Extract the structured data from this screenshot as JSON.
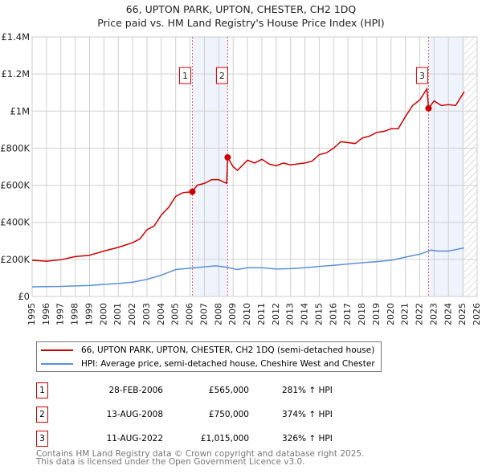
{
  "chart_data": {
    "type": "line",
    "title": "66, UPTON PARK, UPTON, CHESTER, CH2 1DQ",
    "subtitle": "Price paid vs. HM Land Registry's House Price Index (HPI)",
    "xlim": [
      1995,
      2026
    ],
    "ylim": [
      0,
      1400000
    ],
    "yticks": [
      {
        "v": 0,
        "label": "£0"
      },
      {
        "v": 200000,
        "label": "£200K"
      },
      {
        "v": 400000,
        "label": "£400K"
      },
      {
        "v": 600000,
        "label": "£600K"
      },
      {
        "v": 800000,
        "label": "£800K"
      },
      {
        "v": 1000000,
        "label": "£1M"
      },
      {
        "v": 1200000,
        "label": "£1.2M"
      },
      {
        "v": 1400000,
        "label": "£1.4M"
      }
    ],
    "xticks": [
      "1995",
      "1996",
      "1997",
      "1998",
      "1999",
      "2000",
      "2001",
      "2002",
      "2003",
      "2004",
      "2005",
      "2006",
      "2007",
      "2008",
      "2009",
      "2010",
      "2011",
      "2012",
      "2013",
      "2014",
      "2015",
      "2016",
      "2017",
      "2018",
      "2019",
      "2020",
      "2021",
      "2022",
      "2023",
      "2024",
      "2025",
      "2026"
    ],
    "grid": true,
    "shaded_bands": [
      [
        2006.16,
        2008.62
      ],
      [
        2022.61,
        2025.1
      ]
    ],
    "forecast_hatch_from": 2025.1,
    "series": [
      {
        "name": "66, UPTON PARK, UPTON, CHESTER, CH2 1DQ (semi-detached house)",
        "color": "#cc0000",
        "x": [
          1995,
          1996,
          1997,
          1998,
          1999,
          2000,
          2001,
          2002,
          2002.5,
          2003,
          2003.5,
          2004,
          2004.5,
          2005,
          2005.5,
          2006.16,
          2006.5,
          2007,
          2007.5,
          2008,
          2008.55,
          2008.62,
          2009,
          2009.3,
          2010,
          2010.5,
          2011,
          2011.5,
          2012,
          2012.5,
          2013,
          2014,
          2014.5,
          2015,
          2015.5,
          2016,
          2016.5,
          2017,
          2017.5,
          2018,
          2018.5,
          2019,
          2019.5,
          2020,
          2020.5,
          2021,
          2021.5,
          2022,
          2022.5,
          2022.61,
          2023,
          2023.5,
          2024,
          2024.5,
          2025.1
        ],
        "values": [
          195000,
          190000,
          198000,
          215000,
          222000,
          245000,
          265000,
          290000,
          310000,
          360000,
          380000,
          440000,
          480000,
          540000,
          560000,
          565000,
          600000,
          610000,
          630000,
          630000,
          610000,
          750000,
          700000,
          680000,
          735000,
          720000,
          740000,
          715000,
          705000,
          720000,
          710000,
          720000,
          730000,
          765000,
          775000,
          800000,
          835000,
          830000,
          825000,
          855000,
          865000,
          885000,
          890000,
          905000,
          905000,
          970000,
          1030000,
          1060000,
          1120000,
          1015000,
          1055000,
          1030000,
          1035000,
          1030000,
          1105000
        ]
      },
      {
        "name": "HPI: Average price, semi-detached house, Cheshire West and Chester",
        "color": "#5b8fd6",
        "x": [
          1995,
          1997,
          1998,
          1999,
          2000,
          2001,
          2002,
          2003,
          2004,
          2005,
          2006,
          2007,
          2007.8,
          2008.5,
          2009.3,
          2010,
          2011,
          2012,
          2013,
          2014,
          2015,
          2016,
          2017,
          2018,
          2019,
          2020,
          2021,
          2022,
          2022.8,
          2023.3,
          2024,
          2025.1
        ],
        "values": [
          52000,
          54000,
          57000,
          59000,
          65000,
          70000,
          77000,
          92000,
          115000,
          145000,
          152000,
          160000,
          165000,
          158000,
          145000,
          155000,
          155000,
          148000,
          150000,
          155000,
          162000,
          168000,
          175000,
          182000,
          188000,
          195000,
          212000,
          228000,
          250000,
          245000,
          245000,
          262000
        ]
      }
    ],
    "sales": [
      {
        "id": "1",
        "x": 2006.16,
        "value": 565000,
        "date": "28-FEB-2006",
        "price": "£565,000",
        "hpi": "281% ↑ HPI"
      },
      {
        "id": "2",
        "x": 2008.62,
        "value": 750000,
        "date": "13-AUG-2008",
        "price": "£750,000",
        "hpi": "374% ↑ HPI"
      },
      {
        "id": "3",
        "x": 2022.61,
        "value": 1015000,
        "date": "11-AUG-2022",
        "price": "£1,015,000",
        "hpi": "326% ↑ HPI"
      }
    ]
  },
  "footer": {
    "line1": "Contains HM Land Registry data © Crown copyright and database right 2025.",
    "line2": "This data is licensed under the Open Government Licence v3.0."
  }
}
